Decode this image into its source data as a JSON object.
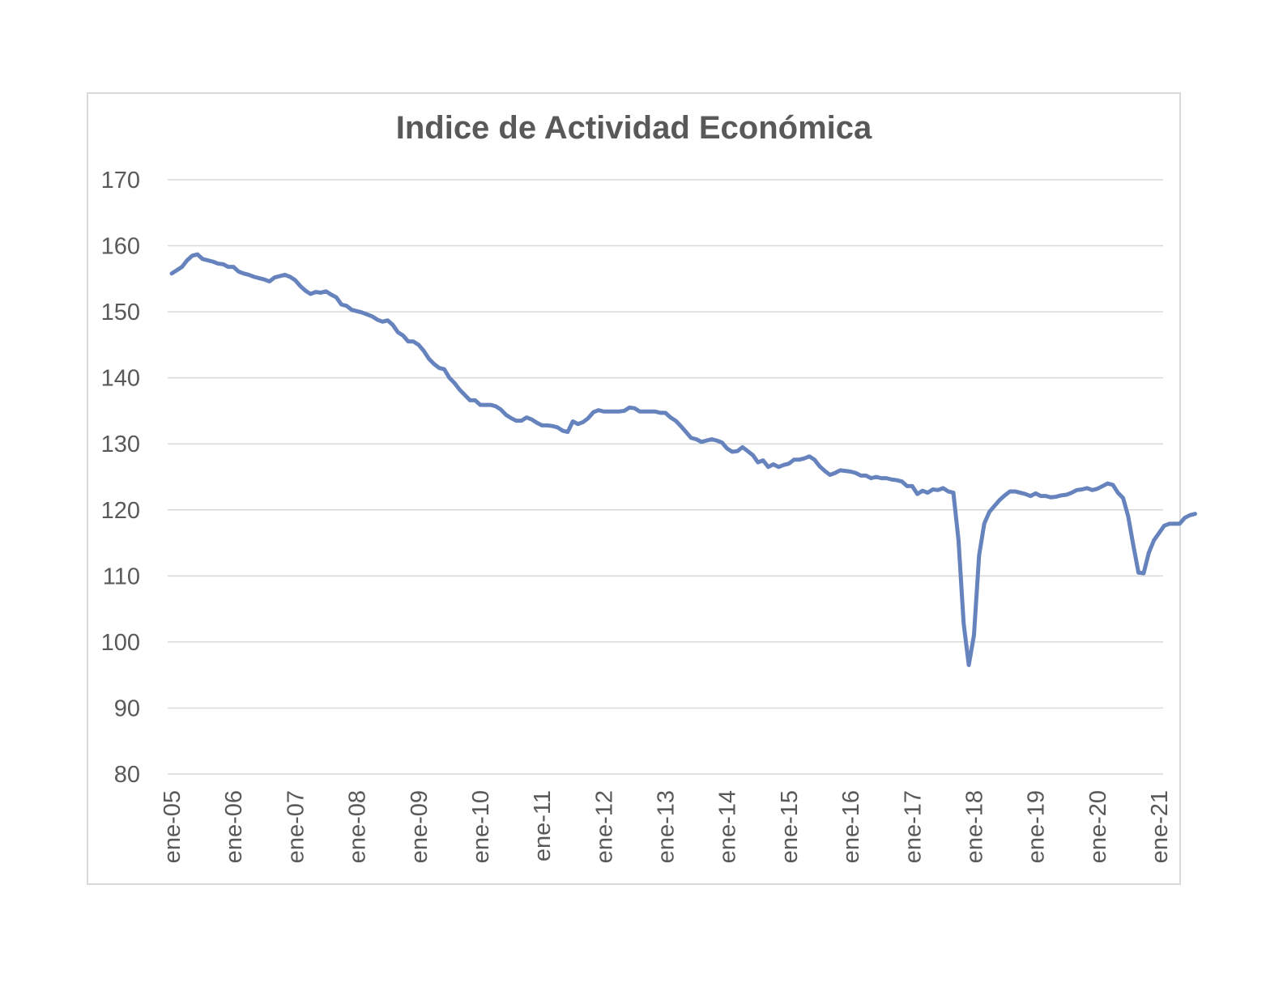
{
  "chart_data": {
    "type": "line",
    "title": "Indice de Actividad Económica",
    "xlabel": "",
    "ylabel": "",
    "ylim": [
      80,
      170
    ],
    "yticks": [
      80,
      90,
      100,
      110,
      120,
      130,
      140,
      150,
      160,
      170
    ],
    "xtick_labels": [
      "ene-05",
      "ene-06",
      "ene-07",
      "ene-08",
      "ene-09",
      "ene-10",
      "ene-11",
      "ene-12",
      "ene-13",
      "ene-14",
      "ene-15",
      "ene-16",
      "ene-17",
      "ene-18",
      "ene-19",
      "ene-20",
      "ene-21"
    ],
    "grid": true,
    "legend": "none",
    "line_color": "#6683bd",
    "series": [
      {
        "start": "2005-01",
        "frequency": "monthly",
        "values": [
          155.8,
          156.3,
          156.8,
          157.8,
          158.5,
          158.7,
          158.0,
          157.8,
          157.6,
          157.3,
          157.2,
          156.8,
          156.8,
          156.1,
          155.8,
          155.6,
          155.3,
          155.1,
          154.9,
          154.6,
          155.2,
          155.4,
          155.6,
          155.3,
          154.8,
          153.9,
          153.2,
          152.7,
          153.0,
          152.9,
          153.1,
          152.6,
          152.2,
          151.1,
          150.9,
          150.3,
          150.1,
          149.9,
          149.6,
          149.3,
          148.8,
          148.5,
          148.7,
          148.0,
          146.9,
          146.4,
          145.5,
          145.5,
          145.0,
          144.1,
          142.9,
          142.1,
          141.5,
          141.3,
          140.0,
          139.2,
          138.2,
          137.4,
          136.6,
          136.6,
          135.9,
          135.9,
          135.9,
          135.7,
          135.2,
          134.4,
          133.9,
          133.5,
          133.5,
          134.0,
          133.7,
          133.2,
          132.8,
          132.8,
          132.7,
          132.5,
          132.0,
          131.8,
          133.4,
          133.0,
          133.3,
          133.9,
          134.8,
          135.1,
          134.9,
          134.9,
          134.9,
          134.9,
          135.0,
          135.5,
          135.4,
          134.9,
          134.9,
          134.9,
          134.9,
          134.7,
          134.7,
          134.0,
          133.5,
          132.7,
          131.8,
          130.9,
          130.7,
          130.3,
          130.5,
          130.7,
          130.5,
          130.2,
          129.3,
          128.8,
          128.9,
          129.5,
          128.9,
          128.3,
          127.2,
          127.5,
          126.5,
          126.9,
          126.5,
          126.8,
          127.0,
          127.6,
          127.6,
          127.8,
          128.1,
          127.6,
          126.6,
          125.9,
          125.3,
          125.6,
          126.0,
          125.9,
          125.8,
          125.6,
          125.2,
          125.2,
          124.8,
          125.0,
          124.8,
          124.8,
          124.6,
          124.5,
          124.3,
          123.6,
          123.6,
          122.4,
          122.9,
          122.6,
          123.1,
          123.0,
          123.3,
          122.8,
          122.6,
          115.4,
          102.8,
          96.5,
          101.0,
          113.1,
          117.9,
          119.7,
          120.6,
          121.5,
          122.2,
          122.8,
          122.8,
          122.6,
          122.4,
          122.1,
          122.5,
          122.1,
          122.1,
          121.9,
          122.0,
          122.2,
          122.3,
          122.6,
          123.0,
          123.1,
          123.3,
          123.0,
          123.2,
          123.6,
          124.0,
          123.8,
          122.6,
          121.8,
          119.0,
          114.6,
          110.5,
          110.4,
          113.5,
          115.4,
          116.5,
          117.6,
          117.9,
          117.9,
          117.9,
          118.8,
          119.2,
          119.4
        ]
      }
    ]
  }
}
